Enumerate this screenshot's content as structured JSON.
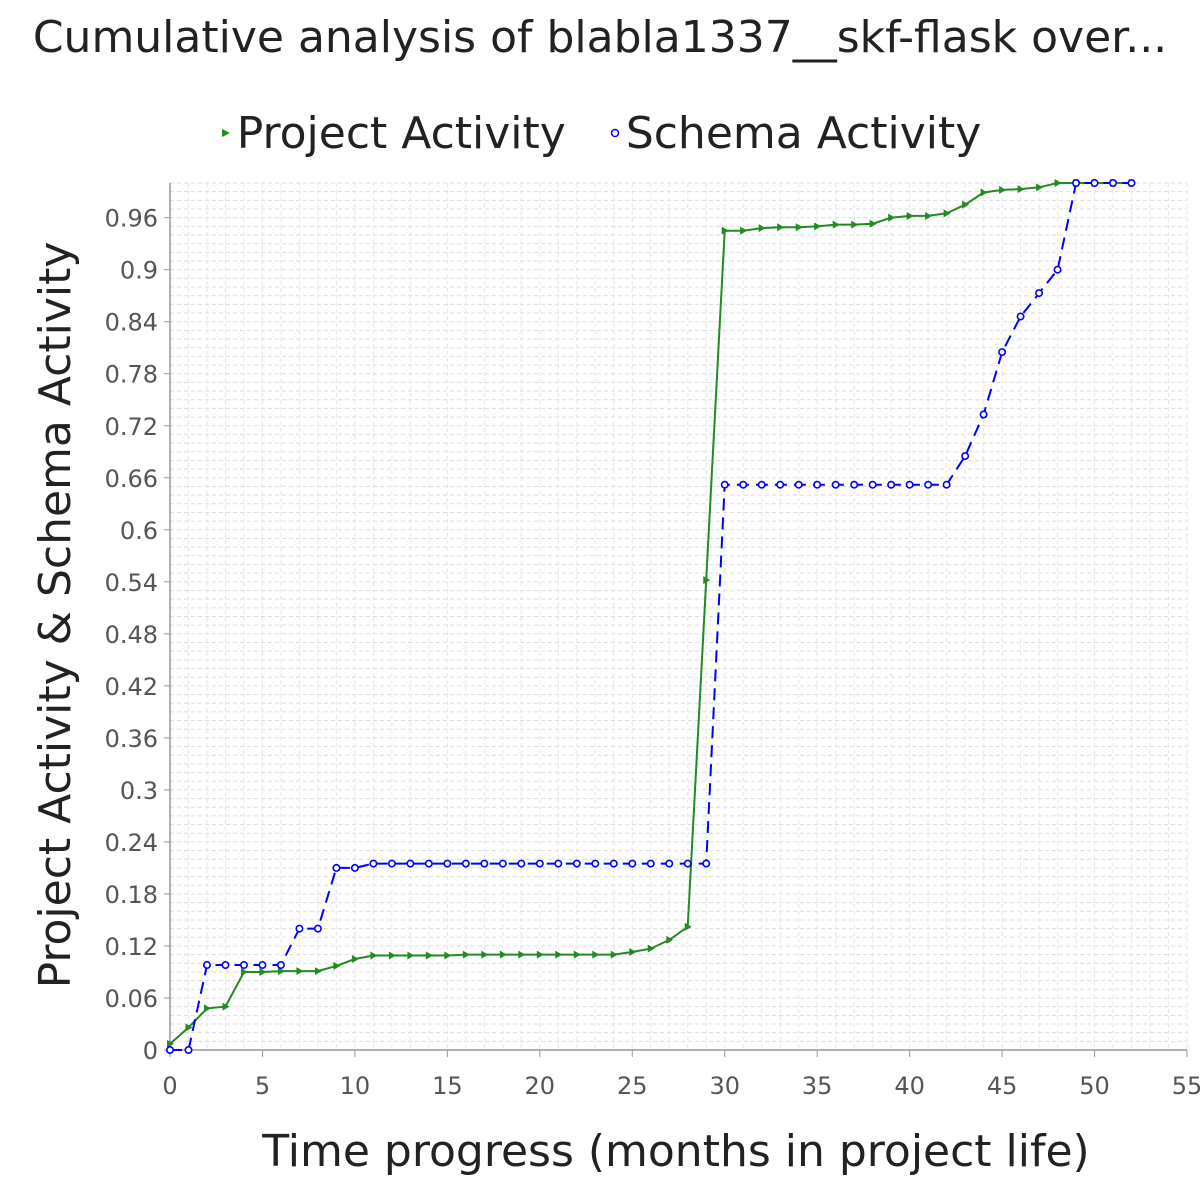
{
  "chart_data": {
    "type": "line",
    "title": "Cumulative analysis of blabla1337__skf-flask over...",
    "xlabel": "Time progress (months in project life)",
    "ylabel": "Project Activity & Schema Activity",
    "xlim": [
      0,
      55
    ],
    "ylim": [
      0,
      1.0
    ],
    "x_ticks": [
      "0",
      "5",
      "10",
      "15",
      "20",
      "25",
      "30",
      "35",
      "40",
      "45",
      "50",
      "55"
    ],
    "y_ticks": [
      "0",
      "0.06",
      "0.12",
      "0.18",
      "0.24",
      "0.3",
      "0.36",
      "0.42",
      "0.48",
      "0.54",
      "0.6",
      "0.66",
      "0.72",
      "0.78",
      "0.84",
      "0.9",
      "0.96"
    ],
    "grid": true,
    "legend_position": "top",
    "series": [
      {
        "name": "Project Activity",
        "color": "#228B22",
        "marker": "triangle-right",
        "line_style": "solid",
        "x": [
          0,
          1,
          2,
          3,
          4,
          5,
          6,
          7,
          8,
          9,
          10,
          11,
          12,
          13,
          14,
          15,
          16,
          17,
          18,
          19,
          20,
          21,
          22,
          23,
          24,
          25,
          26,
          27,
          28,
          29,
          30,
          31,
          32,
          33,
          34,
          35,
          36,
          37,
          38,
          39,
          40,
          41,
          42,
          43,
          44,
          45,
          46,
          47,
          48,
          49,
          50,
          51,
          52
        ],
        "y": [
          0.007,
          0.026,
          0.048,
          0.05,
          0.09,
          0.09,
          0.091,
          0.091,
          0.091,
          0.097,
          0.105,
          0.109,
          0.109,
          0.109,
          0.109,
          0.109,
          0.11,
          0.11,
          0.11,
          0.11,
          0.11,
          0.11,
          0.11,
          0.11,
          0.11,
          0.113,
          0.117,
          0.127,
          0.142,
          0.542,
          0.945,
          0.945,
          0.948,
          0.949,
          0.949,
          0.95,
          0.952,
          0.952,
          0.953,
          0.96,
          0.962,
          0.962,
          0.965,
          0.975,
          0.989,
          0.992,
          0.993,
          0.995,
          1.0,
          1.0,
          1.0,
          1.0,
          1.0
        ]
      },
      {
        "name": "Schema Activity",
        "color": "#0000FF",
        "marker": "circle",
        "line_style": "dashed",
        "x": [
          0,
          1,
          2,
          3,
          4,
          5,
          6,
          7,
          8,
          9,
          10,
          11,
          12,
          13,
          14,
          15,
          16,
          17,
          18,
          19,
          20,
          21,
          22,
          23,
          24,
          25,
          26,
          27,
          28,
          29,
          30,
          31,
          32,
          33,
          34,
          35,
          36,
          37,
          38,
          39,
          40,
          41,
          42,
          43,
          44,
          45,
          46,
          47,
          48,
          49,
          50,
          51,
          52
        ],
        "y": [
          0.0,
          0.0,
          0.098,
          0.098,
          0.098,
          0.098,
          0.098,
          0.14,
          0.14,
          0.21,
          0.21,
          0.215,
          0.215,
          0.215,
          0.215,
          0.215,
          0.215,
          0.215,
          0.215,
          0.215,
          0.215,
          0.215,
          0.215,
          0.215,
          0.215,
          0.215,
          0.215,
          0.215,
          0.215,
          0.215,
          0.652,
          0.652,
          0.652,
          0.652,
          0.652,
          0.652,
          0.652,
          0.652,
          0.652,
          0.652,
          0.652,
          0.652,
          0.652,
          0.685,
          0.733,
          0.805,
          0.846,
          0.873,
          0.9,
          1.0,
          1.0,
          1.0,
          1.0
        ]
      }
    ]
  }
}
